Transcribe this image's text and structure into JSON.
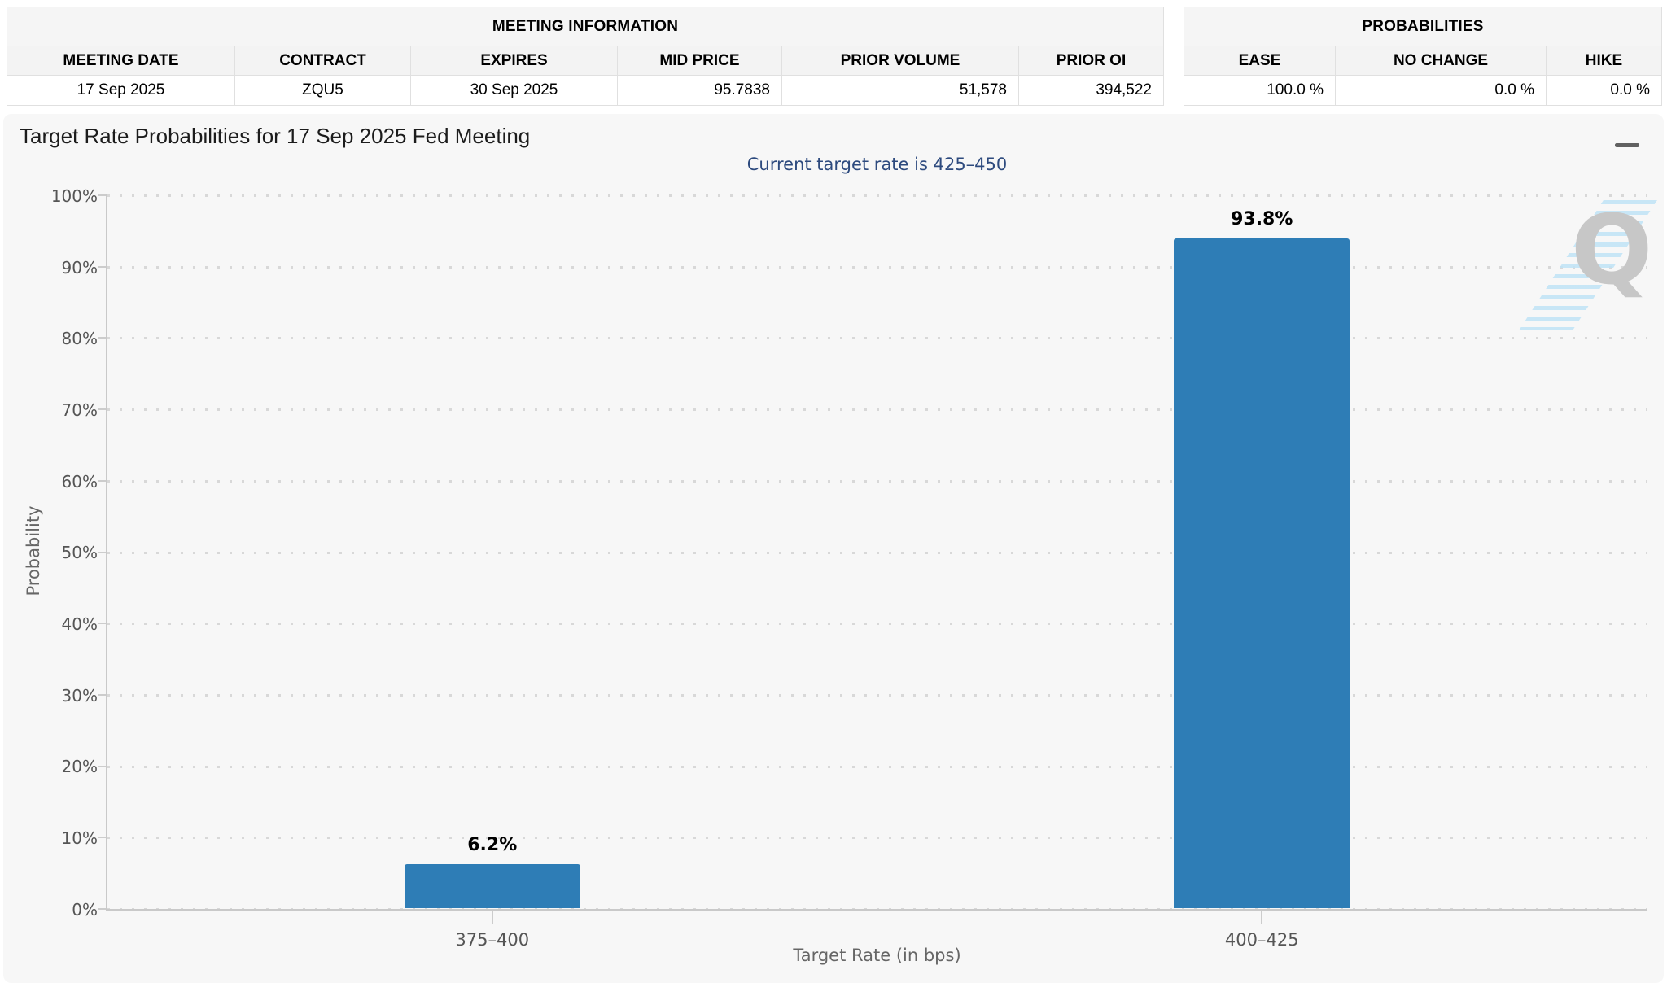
{
  "meeting_information": {
    "title": "MEETING INFORMATION",
    "columns": [
      "MEETING DATE",
      "CONTRACT",
      "EXPIRES",
      "MID PRICE",
      "PRIOR VOLUME",
      "PRIOR OI"
    ],
    "values": [
      "17 Sep 2025",
      "ZQU5",
      "30 Sep 2025",
      "95.7838",
      "51,578",
      "394,522"
    ]
  },
  "probabilities_summary": {
    "title": "PROBABILITIES",
    "columns": [
      "EASE",
      "NO CHANGE",
      "HIKE"
    ],
    "values": [
      "100.0 %",
      "0.0 %",
      "0.0 %"
    ]
  },
  "chart_data": {
    "type": "bar",
    "title": "Target Rate Probabilities for 17 Sep 2025 Fed Meeting",
    "subtitle": "Current target rate is 425–450",
    "categories": [
      "375–400",
      "400–425"
    ],
    "values": [
      6.2,
      93.8
    ],
    "data_labels": [
      "6.2%",
      "93.8%"
    ],
    "xlabel": "Target Rate (in bps)",
    "ylabel": "Probability",
    "ylim": [
      0,
      100
    ],
    "ytick_labels": [
      "0%",
      "10%",
      "20%",
      "30%",
      "40%",
      "50%",
      "60%",
      "70%",
      "80%",
      "90%",
      "100%"
    ],
    "grid": "dotted horizontal gridlines",
    "legend": "none",
    "bar_color": "#2e7db6"
  },
  "watermark": {
    "letter": "Q"
  },
  "colors": {
    "bar": "#2e7db6",
    "subtitle_text": "#2d4a7e",
    "chart_background": "#f7f7f7",
    "axis_text": "#555555",
    "watermark_gray": "#c7c7c7",
    "watermark_blue": "#bfe3f6"
  }
}
